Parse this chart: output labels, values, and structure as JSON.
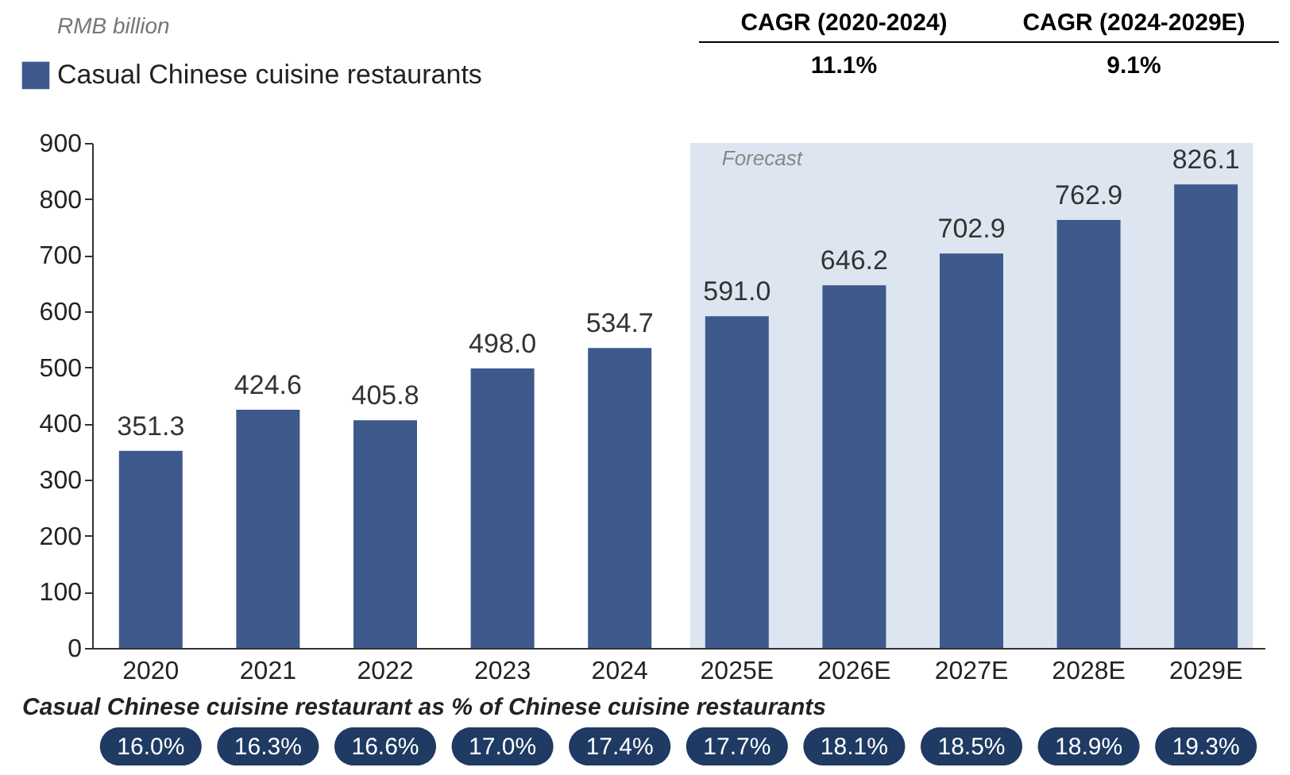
{
  "chart_data": {
    "type": "bar",
    "categories": [
      "2020",
      "2021",
      "2022",
      "2023",
      "2024",
      "2025E",
      "2026E",
      "2027E",
      "2028E",
      "2029E"
    ],
    "series": [
      {
        "name": "Casual Chinese cuisine restaurants",
        "color": "#3e5a8c",
        "values": [
          351.3,
          424.6,
          405.8,
          498.0,
          534.7,
          591.0,
          646.2,
          702.9,
          762.9,
          826.1
        ],
        "value_labels": [
          "351.3",
          "424.6",
          "405.8",
          "498.0",
          "534.7",
          "591.0",
          "646.2",
          "702.9",
          "762.9",
          "826.1"
        ]
      }
    ],
    "ylim": [
      0,
      900
    ],
    "yticks": [
      0,
      100,
      200,
      300,
      400,
      500,
      600,
      700,
      800,
      900
    ],
    "grid": false,
    "legend": "top left",
    "bands": [
      {
        "axis": "x",
        "from": "2025E",
        "to": "2029E",
        "label": "Forecast",
        "color": "#dde6f0"
      }
    ],
    "annotations": [
      "RMB billion",
      "CAGR (2020-2024)",
      "11.1%",
      "CAGR (2024-2029E)",
      "9.1%",
      "Casual Chinese cuisine restaurant as % of Chinese cuisine restaurants",
      "16.0%",
      "16.3%",
      "16.6%",
      "17.0%",
      "17.4%",
      "17.7%",
      "18.1%",
      "18.5%",
      "18.9%",
      "19.3%"
    ]
  }
}
